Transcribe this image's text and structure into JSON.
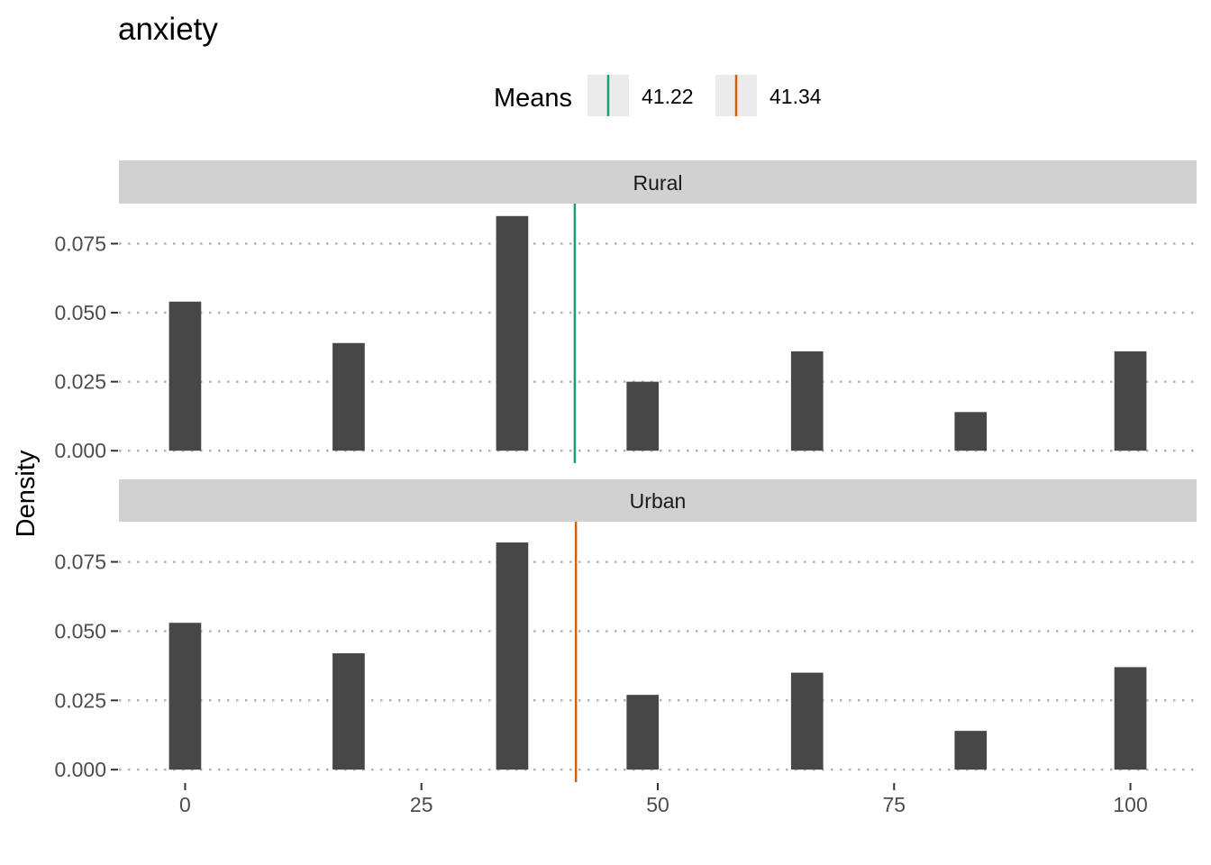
{
  "chart_data": {
    "type": "bar",
    "title": "anxiety",
    "ylabel": "Density",
    "xlabel": "",
    "xlim": [
      -7,
      107
    ],
    "ylim": [
      -0.0045,
      0.0895
    ],
    "x_ticks": [
      0,
      25,
      50,
      75,
      100
    ],
    "y_ticks": [
      0,
      0.025,
      0.05,
      0.075
    ],
    "y_tick_labels": [
      "0.000",
      "0.025",
      "0.050",
      "0.075"
    ],
    "bar_width": 3.4,
    "bar_color": "#474747",
    "grid": "dotted horizontal",
    "legend": {
      "title": "Means",
      "position": "top",
      "entries": [
        {
          "label": "41.22",
          "color": "#1b9e77"
        },
        {
          "label": "41.34",
          "color": "#d95f02"
        }
      ]
    },
    "facets": [
      {
        "name": "Rural",
        "x": [
          0,
          17.3,
          34.6,
          48.4,
          65.8,
          83.1,
          100
        ],
        "values": [
          0.054,
          0.039,
          0.085,
          0.025,
          0.036,
          0.014,
          0.036
        ],
        "mean": 41.22,
        "mean_color": "#1b9e77"
      },
      {
        "name": "Urban",
        "x": [
          0,
          17.3,
          34.6,
          48.4,
          65.8,
          83.1,
          100
        ],
        "values": [
          0.053,
          0.042,
          0.082,
          0.027,
          0.035,
          0.014,
          0.037
        ],
        "mean": 41.34,
        "mean_color": "#d95f02"
      }
    ]
  }
}
